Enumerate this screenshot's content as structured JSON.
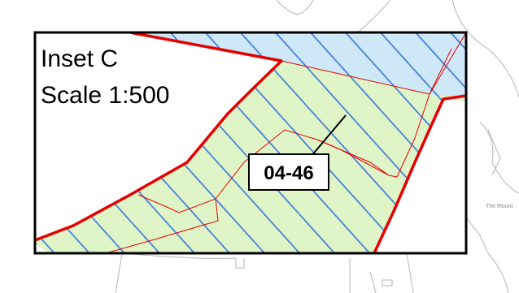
{
  "inset": {
    "title": "Inset C",
    "scale": "Scale 1:500"
  },
  "parcel": {
    "id": "04-46"
  },
  "place_label": "The Mount",
  "colors": {
    "zone_green": "#dff5c8",
    "zone_blue": "#cfe8f8",
    "hatch": "#3d78d8",
    "boundary": "#e60000",
    "frame": "#000000",
    "basemap_lines": "#b5b5b5"
  }
}
